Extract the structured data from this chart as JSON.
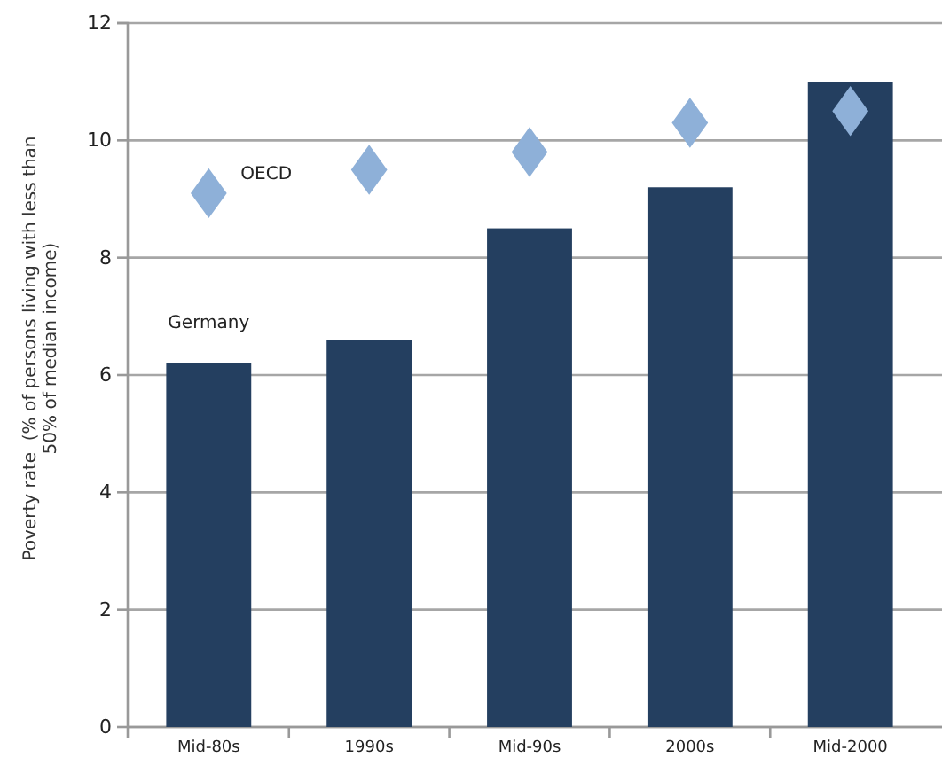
{
  "chart_data": {
    "type": "bar",
    "ylabel": "Poverty rate  (% of persons living with less than 50% of median income)",
    "categories": [
      "Mid-80s",
      "1990s",
      "Mid-90s",
      "2000s",
      "Mid-2000"
    ],
    "series": [
      {
        "name": "Germany",
        "color": "#243f60",
        "values": [
          6.2,
          6.6,
          8.5,
          9.2,
          11.0
        ]
      },
      {
        "name": "OECD",
        "type": "scatter",
        "color": "#8eb0d8",
        "marker": "diamond",
        "values": [
          9.1,
          9.5,
          9.8,
          10.3,
          10.5
        ]
      }
    ],
    "ylim": [
      0,
      12
    ],
    "yticks": [
      0,
      2,
      4,
      6,
      8,
      10,
      12
    ],
    "grid": "y"
  }
}
